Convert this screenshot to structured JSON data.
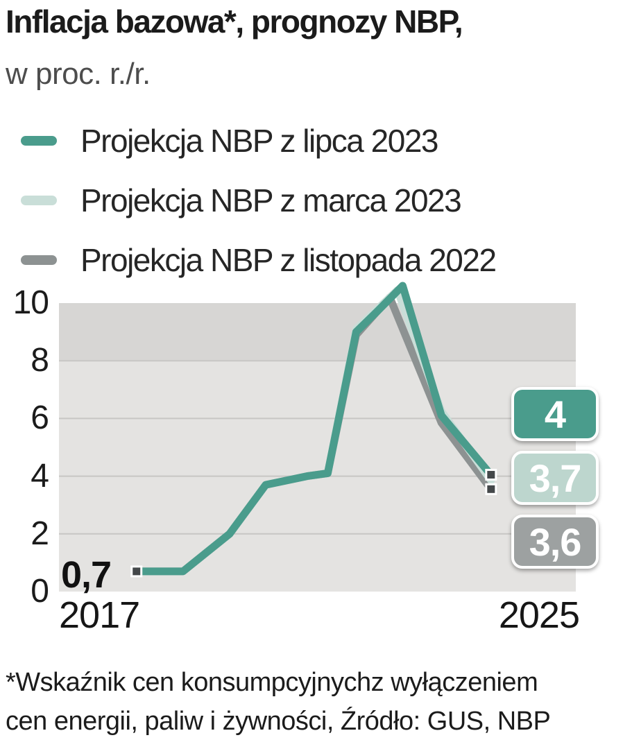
{
  "title": "Inflacja bazowa*, prognozy NBP,",
  "subtitle": "w proc. r./r.",
  "legend": [
    {
      "label": "Projekcja NBP z lipca 2023",
      "color": "#4a9c8c"
    },
    {
      "label": "Projekcja NBP z marca 2023",
      "color": "#c9ded8"
    },
    {
      "label": "Projekcja NBP z listopada 2022",
      "color": "#8d9292"
    }
  ],
  "footnote_line1": "*Wskaźnik cen konsumpcyjnychz wyłączeniem",
  "footnote_line2": "cen energii, paliw i żywności, Źródło: GUS, NBP",
  "chart_data": {
    "type": "line",
    "title": "Inflacja bazowa*, prognozy NBP, w proc. r./r.",
    "x_axis": {
      "start_label": "2017",
      "end_label": "2025"
    },
    "y_ticks": [
      0,
      2,
      4,
      6,
      8,
      10
    ],
    "ylim": [
      0,
      10
    ],
    "grid": true,
    "legend_position": "top",
    "plot_bg": "#e4e3e1",
    "plot_band_bg": "#d7d6d4",
    "grid_color": "#c7c6c4",
    "marker_color": "#44484a",
    "start_point_label": "0,7",
    "start_point_value": 0.7,
    "series": [
      {
        "name": "Projekcja NBP z lipca 2023",
        "color": "#4a9c8c",
        "end_value": 4,
        "badge": "4",
        "badge_color": "#4a9c8c",
        "points": [
          [
            0.15,
            0.7
          ],
          [
            0.24,
            0.7
          ],
          [
            0.33,
            2.0
          ],
          [
            0.4,
            3.7
          ],
          [
            0.48,
            4.0
          ],
          [
            0.52,
            4.1
          ],
          [
            0.575,
            9.0
          ],
          [
            0.615,
            9.7
          ],
          [
            0.665,
            10.6
          ],
          [
            0.74,
            6.1
          ],
          [
            0.838,
            4.0
          ]
        ]
      },
      {
        "name": "Projekcja NBP z marca 2023",
        "color": "#c9ded8",
        "end_value": 3.7,
        "badge": "3,7",
        "badge_color": "#bdd6ce",
        "points": [
          [
            0.15,
            0.7
          ],
          [
            0.24,
            0.7
          ],
          [
            0.33,
            2.0
          ],
          [
            0.4,
            3.7
          ],
          [
            0.48,
            4.0
          ],
          [
            0.52,
            4.1
          ],
          [
            0.575,
            9.1
          ],
          [
            0.655,
            10.45
          ],
          [
            0.74,
            6.25
          ],
          [
            0.836,
            3.85
          ]
        ]
      },
      {
        "name": "Projekcja NBP z listopada 2022",
        "color": "#8d9292",
        "end_value": 3.6,
        "badge": "3,6",
        "badge_color": "#9da1a1",
        "points": [
          [
            0.15,
            0.7
          ],
          [
            0.24,
            0.7
          ],
          [
            0.33,
            2.0
          ],
          [
            0.4,
            3.7
          ],
          [
            0.48,
            4.0
          ],
          [
            0.52,
            4.1
          ],
          [
            0.575,
            8.9
          ],
          [
            0.64,
            10.2
          ],
          [
            0.74,
            5.85
          ],
          [
            0.836,
            3.55
          ]
        ]
      }
    ],
    "markers": [
      {
        "x": 0.15,
        "value": 0.7
      },
      {
        "x": 0.836,
        "value": 4.05
      },
      {
        "x": 0.836,
        "value": 3.55
      }
    ]
  }
}
